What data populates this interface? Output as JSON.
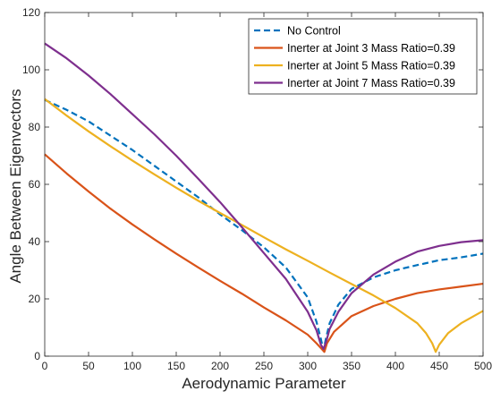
{
  "chart_data": {
    "type": "line",
    "title": "",
    "xlabel": "Aerodynamic Parameter",
    "ylabel": "Angle Between Eigenvectors",
    "xlim": [
      0,
      500
    ],
    "ylim": [
      0,
      120
    ],
    "xticks": [
      0,
      50,
      100,
      150,
      200,
      250,
      300,
      350,
      400,
      450,
      500
    ],
    "yticks": [
      0,
      20,
      40,
      60,
      80,
      100,
      120
    ],
    "grid": false,
    "legend_position": "top-right",
    "series": [
      {
        "name": "No Control",
        "color": "#0072BD",
        "style": "dashed",
        "points": [
          [
            0,
            89.5
          ],
          [
            25,
            86.0
          ],
          [
            50,
            82.0
          ],
          [
            75,
            77.0
          ],
          [
            100,
            72.0
          ],
          [
            125,
            66.5
          ],
          [
            150,
            61.0
          ],
          [
            175,
            55.5
          ],
          [
            200,
            49.5
          ],
          [
            225,
            44.0
          ],
          [
            250,
            38.0
          ],
          [
            275,
            31.0
          ],
          [
            300,
            20.5
          ],
          [
            310,
            12.0
          ],
          [
            315,
            6.0
          ],
          [
            318,
            2.0
          ],
          [
            321,
            6.5
          ],
          [
            325,
            11.5
          ],
          [
            335,
            18.0
          ],
          [
            350,
            23.5
          ],
          [
            375,
            27.5
          ],
          [
            400,
            30.0
          ],
          [
            425,
            31.8
          ],
          [
            450,
            33.5
          ],
          [
            475,
            34.5
          ],
          [
            500,
            35.8
          ]
        ]
      },
      {
        "name": "Inerter at Joint 3 Mass Ratio=0.39",
        "color": "#D95319",
        "style": "solid",
        "points": [
          [
            0,
            70.5
          ],
          [
            25,
            63.8
          ],
          [
            50,
            57.5
          ],
          [
            75,
            51.5
          ],
          [
            100,
            46.0
          ],
          [
            125,
            40.8
          ],
          [
            150,
            35.8
          ],
          [
            175,
            31.0
          ],
          [
            200,
            26.3
          ],
          [
            225,
            21.8
          ],
          [
            250,
            17.0
          ],
          [
            275,
            12.5
          ],
          [
            300,
            7.5
          ],
          [
            310,
            4.5
          ],
          [
            316,
            2.5
          ],
          [
            319,
            1.5
          ],
          [
            322,
            4.5
          ],
          [
            330,
            8.5
          ],
          [
            350,
            14.0
          ],
          [
            375,
            17.5
          ],
          [
            400,
            20.0
          ],
          [
            425,
            22.0
          ],
          [
            450,
            23.3
          ],
          [
            475,
            24.3
          ],
          [
            500,
            25.3
          ]
        ]
      },
      {
        "name": "Inerter at Joint 5 Mass Ratio=0.39",
        "color": "#EDB120",
        "style": "solid",
        "points": [
          [
            0,
            89.8
          ],
          [
            25,
            84.0
          ],
          [
            50,
            78.5
          ],
          [
            75,
            73.3
          ],
          [
            100,
            68.3
          ],
          [
            125,
            63.5
          ],
          [
            150,
            58.8
          ],
          [
            175,
            54.3
          ],
          [
            200,
            50.0
          ],
          [
            225,
            45.8
          ],
          [
            250,
            41.5
          ],
          [
            275,
            37.3
          ],
          [
            300,
            33.3
          ],
          [
            325,
            29.2
          ],
          [
            350,
            25.2
          ],
          [
            375,
            21.2
          ],
          [
            400,
            16.8
          ],
          [
            425,
            11.5
          ],
          [
            435,
            8.0
          ],
          [
            442,
            4.5
          ],
          [
            446,
            1.5
          ],
          [
            450,
            4.0
          ],
          [
            460,
            8.0
          ],
          [
            475,
            11.5
          ],
          [
            500,
            15.8
          ]
        ]
      },
      {
        "name": "Inerter at Joint 7 Mass Ratio=0.39",
        "color": "#7E2F8E",
        "style": "solid",
        "points": [
          [
            0,
            109.2
          ],
          [
            25,
            104.0
          ],
          [
            50,
            98.0
          ],
          [
            75,
            91.5
          ],
          [
            100,
            84.5
          ],
          [
            125,
            77.5
          ],
          [
            150,
            70.0
          ],
          [
            175,
            62.0
          ],
          [
            200,
            53.8
          ],
          [
            225,
            45.0
          ],
          [
            250,
            36.0
          ],
          [
            275,
            27.0
          ],
          [
            300,
            15.5
          ],
          [
            310,
            9.0
          ],
          [
            315,
            4.0
          ],
          [
            318,
            2.5
          ],
          [
            321,
            5.0
          ],
          [
            325,
            9.5
          ],
          [
            335,
            15.5
          ],
          [
            350,
            22.0
          ],
          [
            375,
            28.5
          ],
          [
            400,
            33.0
          ],
          [
            425,
            36.5
          ],
          [
            450,
            38.5
          ],
          [
            475,
            39.8
          ],
          [
            500,
            40.5
          ]
        ]
      }
    ]
  }
}
